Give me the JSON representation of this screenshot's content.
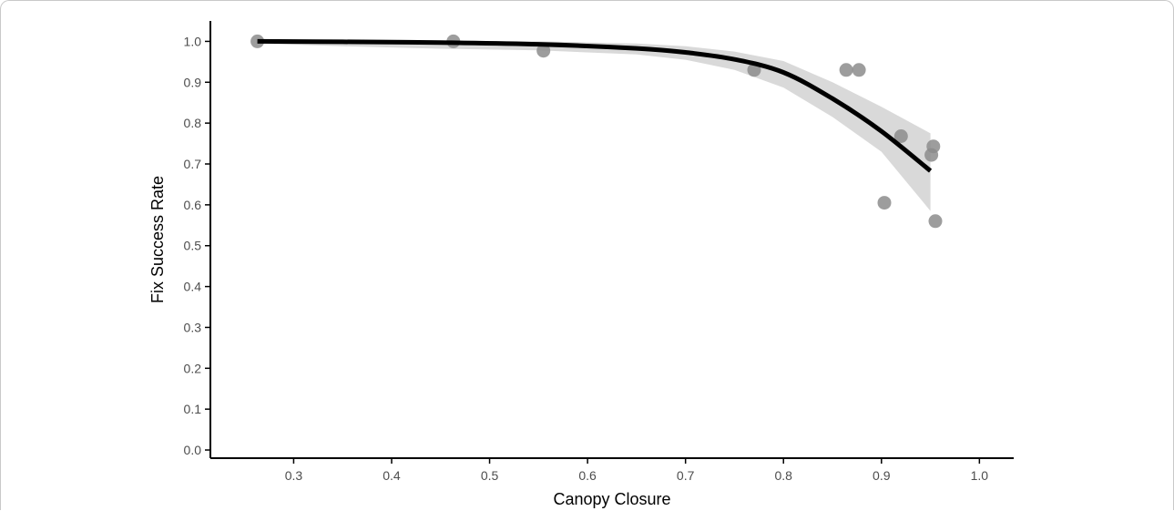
{
  "chart_data": {
    "type": "scatter",
    "title": "",
    "xlabel": "Canopy Closure",
    "ylabel": "Fix Success Rate",
    "xlim": [
      0.215,
      1.035
    ],
    "ylim": [
      -0.02,
      1.05
    ],
    "xticks": [
      "0.3",
      "0.4",
      "0.5",
      "0.6",
      "0.7",
      "0.8",
      "0.9",
      "1.0"
    ],
    "yticks": [
      "0.0",
      "0.1",
      "0.2",
      "0.3",
      "0.4",
      "0.5",
      "0.6",
      "0.7",
      "0.8",
      "0.9",
      "1.0"
    ],
    "grid": false,
    "legend": "none",
    "points": {
      "x": [
        0.263,
        0.463,
        0.555,
        0.77,
        0.864,
        0.877,
        0.92,
        0.903,
        0.951,
        0.953,
        0.955
      ],
      "y": [
        1.0,
        1.0,
        0.977,
        0.93,
        0.93,
        0.93,
        0.768,
        0.605,
        0.722,
        0.743,
        0.56
      ]
    },
    "fit_line": {
      "x": [
        0.263,
        0.35,
        0.45,
        0.55,
        0.65,
        0.7,
        0.75,
        0.8,
        0.85,
        0.9,
        0.95
      ],
      "y": [
        1.0,
        0.999,
        0.997,
        0.993,
        0.983,
        0.973,
        0.956,
        0.924,
        0.86,
        0.78,
        0.683
      ]
    },
    "confidence_band": {
      "x": [
        0.263,
        0.35,
        0.45,
        0.55,
        0.65,
        0.7,
        0.75,
        0.8,
        0.85,
        0.9,
        0.95
      ],
      "lower": [
        0.995,
        0.988,
        0.982,
        0.978,
        0.968,
        0.955,
        0.93,
        0.887,
        0.815,
        0.73,
        0.585
      ],
      "upper": [
        1.0,
        1.0,
        1.0,
        1.0,
        0.995,
        0.988,
        0.975,
        0.952,
        0.9,
        0.84,
        0.775
      ]
    },
    "colors": {
      "points": "#8c8c8c",
      "line": "#000000",
      "band": "#d9d9d9",
      "axis": "#000000"
    }
  }
}
